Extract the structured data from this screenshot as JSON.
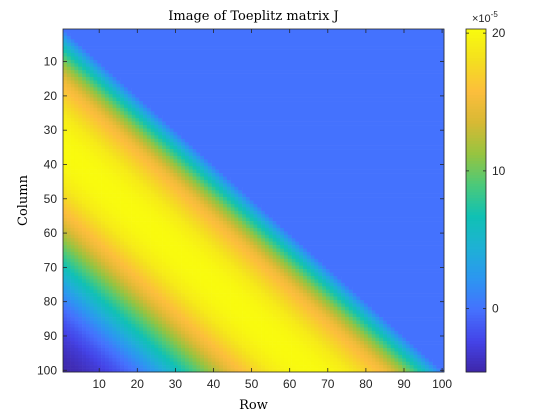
{
  "chart_data": {
    "type": "heatmap",
    "title": "Image of Toeplitz matrix J",
    "xlabel": "Row",
    "ylabel": "Column",
    "xlim": [
      0.5,
      100.5
    ],
    "ylim": [
      0.5,
      100.5
    ],
    "xticks": [
      10,
      20,
      30,
      40,
      50,
      60,
      70,
      80,
      90,
      100
    ],
    "yticks": [
      10,
      20,
      30,
      40,
      50,
      60,
      70,
      80,
      90,
      100
    ],
    "y_direction": "reverse",
    "grid": false,
    "colormap": "parula",
    "matrix_size": 100,
    "structure": "lower-triangular Toeplitz; J[i][j] = f(i - j) for i >= j, 0 for i < j",
    "diagonal_profile": {
      "offset": [
        -1,
        0,
        5,
        10,
        15,
        20,
        25,
        30,
        35,
        40,
        45,
        50,
        55,
        60,
        65,
        70,
        75,
        80,
        85,
        90,
        95,
        99
      ],
      "value_e5": [
        0,
        0,
        6,
        11,
        15,
        17,
        19,
        20,
        20.3,
        20,
        19,
        17,
        15,
        12,
        9,
        6,
        3,
        0.5,
        -1.5,
        -3,
        -4,
        -4.5
      ]
    },
    "colorbar": {
      "location": "right",
      "clim": [
        -4.6,
        20.3
      ],
      "ticks": [
        0,
        10,
        20
      ],
      "tick_labels": [
        "0",
        "10",
        "20"
      ],
      "exponent_label": "×10",
      "exponent": "-5"
    },
    "colors": {
      "parula": [
        "#3e26a8",
        "#4444e8",
        "#4571fe",
        "#2c96f1",
        "#1eb1d5",
        "#10c1b4",
        "#4bc97a",
        "#96c440",
        "#d7b934",
        "#fcbe3c",
        "#f4df1f",
        "#f9fb0e"
      ],
      "zero_color": "#4361ee",
      "axis": "#262626"
    }
  }
}
